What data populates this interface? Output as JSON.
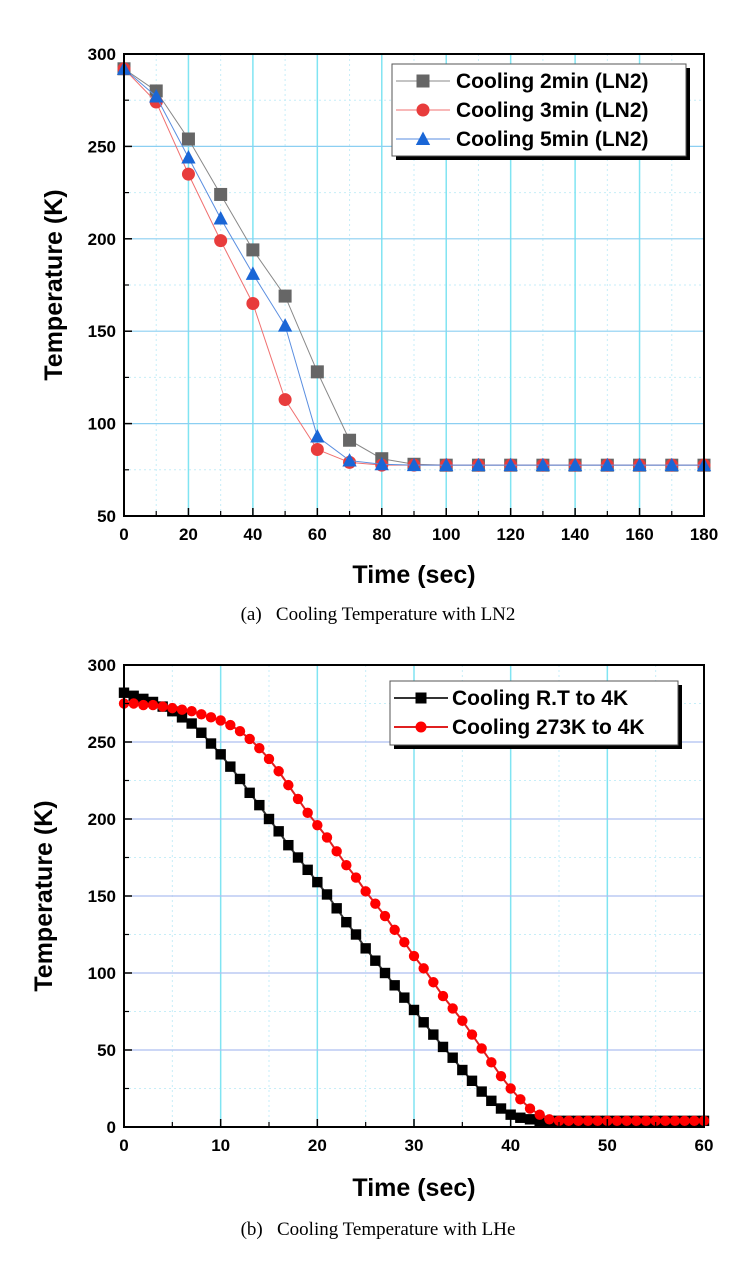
{
  "chart_data": [
    {
      "type": "line",
      "caption": "(a)   Cooling Temperature with LN2",
      "xlabel": "Time (sec)",
      "ylabel": "Temperature (K)",
      "xlim": [
        0,
        180
      ],
      "ylim": [
        50,
        300
      ],
      "xticks": [
        "0",
        "20",
        "40",
        "60",
        "80",
        "100",
        "120",
        "140",
        "160",
        "180"
      ],
      "yticks": [
        "50",
        "100",
        "150",
        "200",
        "250",
        "300"
      ],
      "grid": true,
      "legend_position": "top-right",
      "x": [
        0,
        10,
        20,
        30,
        40,
        50,
        60,
        70,
        80,
        90,
        100,
        110,
        120,
        130,
        140,
        150,
        160,
        170,
        180
      ],
      "series": [
        {
          "name": "Cooling 2min (LN2)",
          "marker": "square",
          "color": "#666666",
          "line_color": "#888888",
          "values": [
            292,
            280,
            254,
            224,
            194,
            169,
            128,
            91,
            81,
            78,
            77.5,
            77.5,
            77.5,
            77.5,
            77.5,
            77.5,
            77.5,
            77.5,
            77.5
          ]
        },
        {
          "name": "Cooling 3min (LN2)",
          "marker": "circle",
          "color": "#e83c3c",
          "line_color": "#f07070",
          "values": [
            292,
            274,
            235,
            199,
            165,
            113,
            86,
            79,
            77.5,
            77.5,
            77.5,
            77.5,
            77.5,
            77.5,
            77.5,
            77.5,
            77.5,
            77.5,
            77.5
          ]
        },
        {
          "name": "Cooling 5min (LN2)",
          "marker": "triangle",
          "color": "#1a66d6",
          "line_color": "#5a8ee0",
          "values": [
            292,
            277,
            244,
            211,
            181,
            153,
            93,
            80,
            78,
            77.5,
            77.5,
            77.5,
            77.5,
            77.5,
            77.5,
            77.5,
            77.5,
            77.5,
            77.5
          ]
        }
      ]
    },
    {
      "type": "line",
      "caption": "(b)   Cooling Temperature with LHe",
      "xlabel": "Time (sec)",
      "ylabel": "Temperature (K)",
      "xlim": [
        0,
        60
      ],
      "ylim": [
        0,
        300
      ],
      "xticks": [
        "0",
        "10",
        "20",
        "30",
        "40",
        "50",
        "60"
      ],
      "yticks": [
        "0",
        "50",
        "100",
        "150",
        "200",
        "250",
        "300"
      ],
      "grid": true,
      "legend_position": "top-right",
      "x": [
        0,
        1,
        2,
        3,
        4,
        5,
        6,
        7,
        8,
        9,
        10,
        11,
        12,
        13,
        14,
        15,
        16,
        17,
        18,
        19,
        20,
        21,
        22,
        23,
        24,
        25,
        26,
        27,
        28,
        29,
        30,
        31,
        32,
        33,
        34,
        35,
        36,
        37,
        38,
        39,
        40,
        41,
        42,
        43,
        44,
        45,
        46,
        47,
        48,
        49,
        50,
        51,
        52,
        53,
        54,
        55,
        56,
        57,
        58,
        59,
        60
      ],
      "series": [
        {
          "name": "Cooling R.T to 4K",
          "marker": "square",
          "color": "#000000",
          "line_color": "#333333",
          "values": [
            282,
            280,
            278,
            276,
            273,
            270,
            266,
            262,
            256,
            249,
            242,
            234,
            226,
            217,
            209,
            200,
            192,
            183,
            175,
            167,
            159,
            151,
            142,
            133,
            125,
            116,
            108,
            100,
            92,
            84,
            76,
            68,
            60,
            52,
            45,
            37,
            30,
            23,
            17,
            12,
            8,
            6,
            5,
            4,
            4,
            4,
            4,
            4,
            4,
            4,
            4,
            4,
            4,
            4,
            4,
            4,
            4,
            4,
            4,
            4,
            4
          ]
        },
        {
          "name": "Cooling 273K to 4K",
          "marker": "circle",
          "color": "#ff0000",
          "line_color": "#e02020",
          "values": [
            275,
            275,
            274,
            274,
            273,
            272,
            271,
            270,
            268,
            266,
            264,
            261,
            257,
            252,
            246,
            239,
            231,
            222,
            213,
            204,
            196,
            188,
            179,
            170,
            162,
            153,
            145,
            137,
            128,
            120,
            111,
            103,
            94,
            85,
            77,
            69,
            60,
            51,
            42,
            33,
            25,
            18,
            12,
            8,
            5,
            4,
            4,
            4,
            4,
            4,
            4,
            4,
            4,
            4,
            4,
            4,
            4,
            4,
            4,
            4,
            4
          ]
        }
      ]
    }
  ]
}
